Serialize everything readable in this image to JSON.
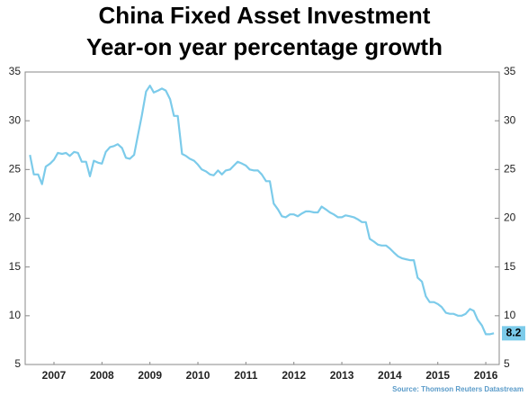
{
  "chart_data": {
    "type": "line",
    "title": "China Fixed Asset Investment",
    "subtitle": "Year-on year percentage growth",
    "source": "Source: Thomson Reuters Datastream",
    "x": [
      2007,
      2007.08,
      2007.17,
      2007.25,
      2007.33,
      2007.42,
      2007.5,
      2007.58,
      2007.67,
      2007.75,
      2007.83,
      2007.92,
      2008,
      2008.08,
      2008.17,
      2008.25,
      2008.33,
      2008.42,
      2008.5,
      2008.58,
      2008.67,
      2008.75,
      2008.83,
      2008.92,
      2009,
      2009.08,
      2009.17,
      2009.25,
      2009.33,
      2009.42,
      2009.5,
      2009.58,
      2009.67,
      2009.75,
      2009.83,
      2009.92,
      2010,
      2010.08,
      2010.17,
      2010.25,
      2010.33,
      2010.42,
      2010.5,
      2010.58,
      2010.67,
      2010.75,
      2010.83,
      2010.92,
      2011,
      2011.08,
      2011.17,
      2011.25,
      2011.33,
      2011.42,
      2011.5,
      2011.58,
      2011.67,
      2011.75,
      2011.83,
      2011.92,
      2012,
      2012.08,
      2012.17,
      2012.25,
      2012.33,
      2012.42,
      2012.5,
      2012.58,
      2012.67,
      2012.75,
      2012.83,
      2012.92,
      2013,
      2013.08,
      2013.17,
      2013.25,
      2013.33,
      2013.42,
      2013.5,
      2013.58,
      2013.67,
      2013.75,
      2013.83,
      2013.92,
      2014,
      2014.08,
      2014.17,
      2014.25,
      2014.33,
      2014.42,
      2014.5,
      2014.58,
      2014.67,
      2014.75,
      2014.83,
      2014.92,
      2015,
      2015.08,
      2015.17,
      2015.25,
      2015.33,
      2015.42,
      2015.5,
      2015.58,
      2015.67,
      2015.75,
      2015.83,
      2015.92,
      2016,
      2016.08,
      2016.17,
      2016.25,
      2016.33,
      2016.42,
      2016.5,
      2016.58,
      2016.67
    ],
    "series": [
      {
        "color": "#7ccbea",
        "values": [
          26.5,
          24.5,
          24.5,
          23.5,
          25.3,
          25.6,
          26.0,
          26.7,
          26.6,
          26.7,
          26.4,
          26.8,
          26.7,
          25.8,
          25.8,
          24.3,
          25.9,
          25.7,
          25.6,
          26.8,
          27.3,
          27.4,
          27.6,
          27.2,
          26.2,
          26.1,
          26.5,
          28.5,
          30.5,
          33.0,
          33.6,
          32.9,
          33.1,
          33.3,
          33.1,
          32.2,
          30.5,
          30.5,
          26.6,
          26.4,
          26.1,
          25.9,
          25.5,
          25.0,
          24.8,
          24.5,
          24.4,
          24.9,
          24.5,
          24.9,
          25.0,
          25.4,
          25.8,
          25.6,
          25.4,
          25.0,
          24.9,
          24.9,
          24.5,
          23.8,
          23.8,
          21.5,
          20.9,
          20.2,
          20.1,
          20.4,
          20.4,
          20.2,
          20.5,
          20.7,
          20.7,
          20.6,
          20.6,
          21.2,
          20.9,
          20.6,
          20.4,
          20.1,
          20.1,
          20.3,
          20.2,
          20.1,
          19.9,
          19.6,
          19.6,
          17.9,
          17.6,
          17.3,
          17.2,
          17.2,
          16.9,
          16.5,
          16.1,
          15.9,
          15.8,
          15.7,
          15.7,
          13.9,
          13.5,
          12.0,
          11.4,
          11.4,
          11.2,
          10.9,
          10.3,
          10.2,
          10.2,
          10.0,
          10.0,
          10.2,
          10.7,
          10.5,
          9.6,
          9.0,
          8.1,
          8.1,
          8.2
        ]
      }
    ],
    "xlim": [
      2006.9,
      2016.78
    ],
    "xticks": [
      {
        "value": 2007.5,
        "label": "2007"
      },
      {
        "value": 2008.5,
        "label": "2008"
      },
      {
        "value": 2009.5,
        "label": "2009"
      },
      {
        "value": 2010.5,
        "label": "2010"
      },
      {
        "value": 2011.5,
        "label": "2011"
      },
      {
        "value": 2012.5,
        "label": "2012"
      },
      {
        "value": 2013.5,
        "label": "2013"
      },
      {
        "value": 2014.5,
        "label": "2014"
      },
      {
        "value": 2015.5,
        "label": "2015"
      },
      {
        "value": 2016.5,
        "label": "2016"
      }
    ],
    "ylim": [
      5,
      35
    ],
    "yticks": [
      5,
      10,
      15,
      20,
      25,
      30,
      35
    ],
    "y2lim": [
      5,
      35
    ],
    "y2ticks": [
      5,
      10,
      15,
      20,
      25,
      30,
      35
    ],
    "last_value_label": true
  }
}
